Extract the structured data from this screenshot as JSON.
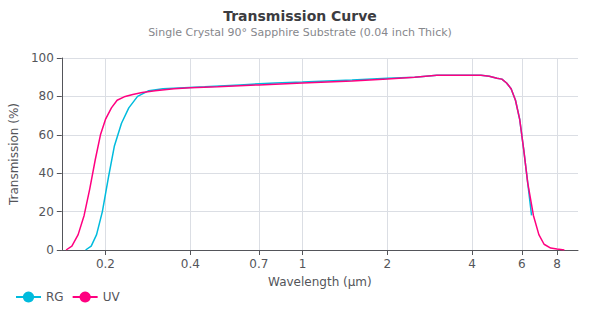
{
  "chart_data": {
    "type": "line",
    "title": "Transmission Curve",
    "subtitle": "Single Crystal 90° Sapphire Substrate (0.04 inch Thick)",
    "xlabel": "Wavelength (μm)",
    "ylabel": "Transmission (%)",
    "log": "x",
    "grid": true,
    "legend": "bottom",
    "xlim": [
      0.14,
      9.5
    ],
    "xticks": [
      0.2,
      0.4,
      0.7,
      1,
      2,
      4,
      6,
      8
    ],
    "ylim": [
      0,
      100
    ],
    "yticks": [
      0,
      20,
      40,
      60,
      80,
      100
    ],
    "series": [
      {
        "name": "RG",
        "color": "#00bbdd",
        "x": [
          0.17,
          0.178,
          0.186,
          0.195,
          0.205,
          0.215,
          0.228,
          0.242,
          0.26,
          0.285,
          0.32,
          0.38,
          0.45,
          0.6,
          0.8,
          1.0,
          1.5,
          2.0,
          2.5,
          3.0,
          3.5,
          4.0,
          4.3,
          4.6,
          4.9,
          5.1,
          5.3,
          5.5,
          5.7,
          5.9,
          6.1,
          6.3,
          6.5
        ],
        "values": [
          0,
          2,
          8,
          20,
          38,
          54,
          66,
          74,
          80,
          83,
          84,
          84.5,
          85,
          86,
          87,
          87.5,
          88.5,
          89.5,
          90,
          91,
          91,
          91,
          91,
          90.5,
          89.5,
          89,
          87,
          84,
          78,
          68,
          52,
          35,
          18
        ]
      },
      {
        "name": "UV",
        "color": "#ff0080",
        "x": [
          0.145,
          0.152,
          0.16,
          0.168,
          0.176,
          0.184,
          0.192,
          0.2,
          0.21,
          0.22,
          0.235,
          0.25,
          0.27,
          0.3,
          0.35,
          0.4,
          0.5,
          0.7,
          1.0,
          1.5,
          2.0,
          2.5,
          3.0,
          3.5,
          4.0,
          4.3,
          4.6,
          4.9,
          5.1,
          5.3,
          5.5,
          5.7,
          5.9,
          6.1,
          6.3,
          6.6,
          6.9,
          7.2,
          7.6,
          8.0,
          8.5
        ],
        "values": [
          0,
          2,
          8,
          18,
          32,
          47,
          60,
          68,
          74,
          78,
          80,
          81,
          82,
          83,
          84,
          84.5,
          85,
          86,
          87,
          88,
          89,
          90,
          91,
          91,
          91,
          91,
          90.5,
          89.5,
          89,
          87,
          84,
          78,
          68,
          52,
          35,
          18,
          8,
          3,
          1,
          0.5,
          0
        ]
      }
    ]
  }
}
